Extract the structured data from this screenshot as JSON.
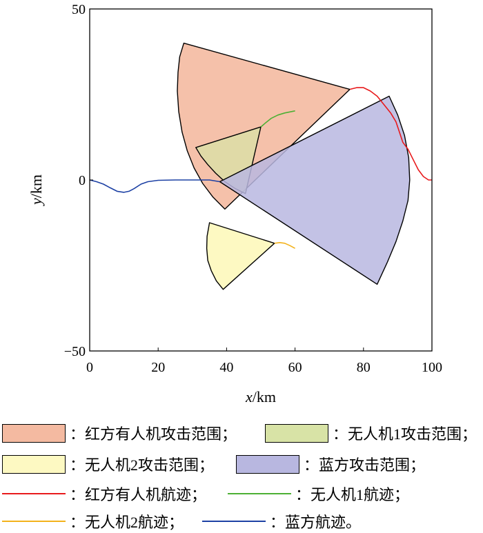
{
  "chart_data": {
    "type": "area",
    "xlabel_italic": "x",
    "xlabel_unit": "/km",
    "ylabel_italic": "y",
    "ylabel_unit": "/km",
    "xlim": [
      0,
      100
    ],
    "ylim": [
      -50,
      50
    ],
    "xticks": [
      "0",
      "20",
      "40",
      "60",
      "80",
      "100"
    ],
    "yticks": [
      "50",
      "0",
      "−50"
    ],
    "grid": false,
    "legend_position": "bottom",
    "regions": [
      {
        "label": "：红方有人机攻击范围；",
        "color": "#f4baa1",
        "opacity": 0.9,
        "points": [
          [
            76,
            26.5
          ],
          [
            39.5,
            -8.5
          ],
          [
            36.0,
            -5.0
          ],
          [
            33.0,
            -1.0
          ],
          [
            30.5,
            3.5
          ],
          [
            28.5,
            8.5
          ],
          [
            27.0,
            14.0
          ],
          [
            26.0,
            20.0
          ],
          [
            25.6,
            26.0
          ],
          [
            25.8,
            31.5
          ],
          [
            26.3,
            36.0
          ],
          [
            27.5,
            40.0
          ]
        ]
      },
      {
        "label": "：无人机1攻击范围；",
        "color": "#d8e3a6",
        "opacity": 0.72,
        "points": [
          [
            50,
            15.5
          ],
          [
            45.5,
            -4
          ],
          [
            42.5,
            -2.5
          ],
          [
            39.5,
            -0.5
          ],
          [
            36.8,
            2.0
          ],
          [
            34.5,
            4.5
          ],
          [
            32.5,
            7.0
          ],
          [
            31.0,
            9.5
          ]
        ]
      },
      {
        "label": "：无人机2攻击范围；",
        "color": "#fdf9c2",
        "opacity": 1,
        "points": [
          [
            54,
            -18.5
          ],
          [
            39,
            -32
          ],
          [
            37.0,
            -29.5
          ],
          [
            35.5,
            -26.5
          ],
          [
            34.5,
            -23.5
          ],
          [
            34.2,
            -20.0
          ],
          [
            34.3,
            -16.5
          ],
          [
            35.0,
            -12.5
          ]
        ]
      },
      {
        "label": "：蓝方攻击范围；",
        "color": "#b8b7e0",
        "opacity": 0.85,
        "points": [
          [
            38,
            -0.5
          ],
          [
            87.5,
            24.5
          ],
          [
            90.0,
            19.0
          ],
          [
            92.0,
            13.0
          ],
          [
            93.2,
            6.5
          ],
          [
            93.5,
            0.0
          ],
          [
            93.0,
            -6.0
          ],
          [
            91.5,
            -12.0
          ],
          [
            89.5,
            -18.0
          ],
          [
            87.0,
            -24.0
          ],
          [
            84.0,
            -30.5
          ]
        ]
      }
    ],
    "tracks": [
      {
        "label": "：红方有人机航迹；",
        "color": "#e8191b",
        "points": [
          [
            76,
            26.5
          ],
          [
            78,
            27.0
          ],
          [
            80,
            27.0
          ],
          [
            82,
            26.0
          ],
          [
            84,
            24.5
          ],
          [
            86,
            22.0
          ],
          [
            88,
            19.5
          ],
          [
            89.5,
            17.0
          ],
          [
            90.5,
            14.0
          ],
          [
            91.5,
            11.0
          ],
          [
            93,
            9.0
          ],
          [
            94.5,
            6.0
          ],
          [
            96,
            3.0
          ],
          [
            97.5,
            1.0
          ],
          [
            99,
            0.0
          ],
          [
            100,
            0.0
          ]
        ]
      },
      {
        "label": "：无人机1航迹；",
        "color": "#4cb034",
        "points": [
          [
            50,
            15.5
          ],
          [
            51.5,
            16.8
          ],
          [
            53,
            18.0
          ],
          [
            55,
            19.0
          ],
          [
            57,
            19.6
          ],
          [
            59,
            20.0
          ],
          [
            60,
            20.2
          ]
        ]
      },
      {
        "label": "：无人机2航迹；",
        "color": "#f3b21b",
        "points": [
          [
            54,
            -18.5
          ],
          [
            55.5,
            -18.3
          ],
          [
            57,
            -18.5
          ],
          [
            58.5,
            -19.2
          ],
          [
            60,
            -20.0
          ]
        ]
      },
      {
        "label": "：蓝方航迹。",
        "color": "#1c40a4",
        "points": [
          [
            0,
            0
          ],
          [
            2,
            -0.5
          ],
          [
            4,
            -1.2
          ],
          [
            6,
            -2.3
          ],
          [
            8,
            -3.3
          ],
          [
            10,
            -3.6
          ],
          [
            11.5,
            -3.3
          ],
          [
            13,
            -2.5
          ],
          [
            15,
            -1.2
          ],
          [
            17,
            -0.5
          ],
          [
            20,
            -0.1
          ],
          [
            25,
            0.0
          ],
          [
            30,
            0.0
          ],
          [
            35,
            0.0
          ],
          [
            38,
            -0.5
          ]
        ]
      }
    ]
  }
}
